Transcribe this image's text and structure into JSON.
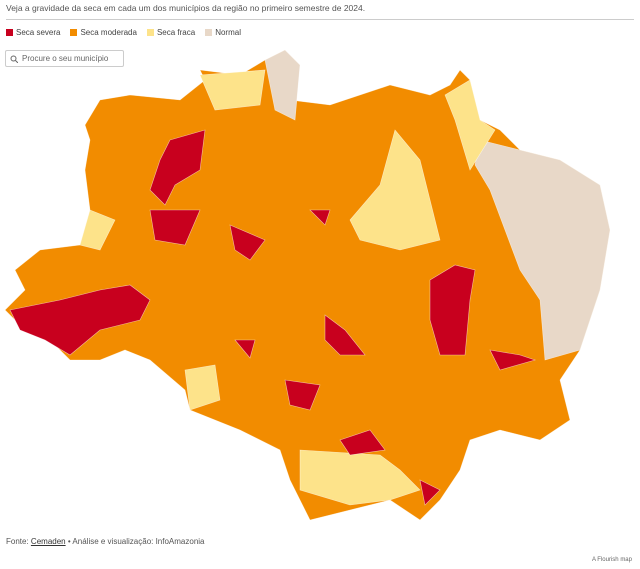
{
  "subtitle": "Veja a gravidade da seca em cada um dos municípios da região no primeiro semestre de 2024.",
  "legend": [
    {
      "label": "Seca severa",
      "color": "#c8001e"
    },
    {
      "label": "Seca moderada",
      "color": "#f28c00"
    },
    {
      "label": "Seca fraca",
      "color": "#fde38a"
    },
    {
      "label": "Normal",
      "color": "#e8d8c8"
    }
  ],
  "search": {
    "placeholder": "Procure o seu município"
  },
  "source": {
    "prefix": "Fonte:",
    "link": "Cemaden",
    "rest": "• Análise e visualização: InfoAmazonia"
  },
  "credit": "A Flourish map"
}
